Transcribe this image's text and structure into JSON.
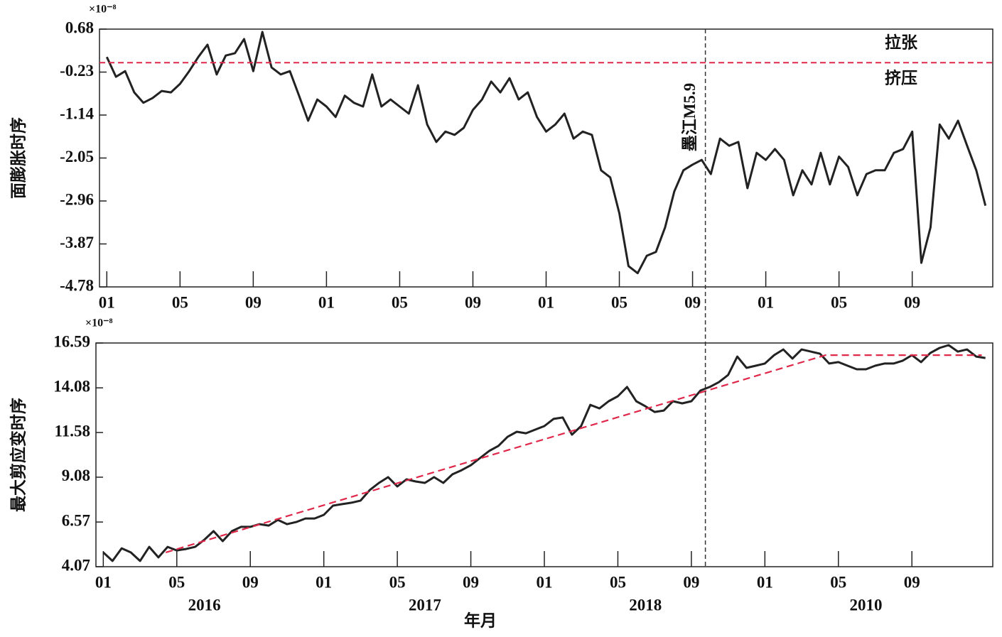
{
  "chart_data": [
    {
      "type": "line",
      "y_label": "面膨胀时序",
      "y_exponent": "×10⁻⁸",
      "xlim": [
        -0.4,
        48.4
      ],
      "xticks": [
        {
          "value": 0,
          "label": "01"
        },
        {
          "value": 4,
          "label": "05"
        },
        {
          "value": 8,
          "label": "09"
        },
        {
          "value": 12,
          "label": "01"
        },
        {
          "value": 16,
          "label": "05"
        },
        {
          "value": 20,
          "label": "09"
        },
        {
          "value": 24,
          "label": "01"
        },
        {
          "value": 28,
          "label": "05"
        },
        {
          "value": 32,
          "label": "09"
        },
        {
          "value": 36,
          "label": "01"
        },
        {
          "value": 40,
          "label": "05"
        },
        {
          "value": 44,
          "label": "09"
        }
      ],
      "ylim": [
        -4.78,
        0.68
      ],
      "yticks": [
        0.68,
        -0.23,
        -1.14,
        -2.05,
        -2.96,
        -3.87,
        -4.78
      ],
      "color": "#222222",
      "x": [
        0,
        0.5,
        1,
        1.5,
        2,
        2.5,
        3,
        3.5,
        4,
        4.5,
        5,
        5.5,
        6,
        6.5,
        7,
        7.5,
        8,
        8.5,
        9,
        9.5,
        10,
        10.5,
        11,
        11.5,
        12,
        12.5,
        13,
        13.5,
        14,
        14.5,
        15,
        15.5,
        16,
        16.5,
        17,
        17.5,
        18,
        18.5,
        19,
        19.5,
        20,
        20.5,
        21,
        21.5,
        22,
        22.5,
        23,
        23.5,
        24,
        24.5,
        25,
        25.5,
        26,
        26.5,
        27,
        27.5,
        28,
        28.5,
        29,
        29.5,
        30,
        30.5,
        31,
        31.5,
        32,
        32.5,
        33,
        33.5,
        34,
        34.5,
        35,
        35.5,
        36,
        36.5,
        37,
        37.5,
        38,
        38.5,
        39,
        39.5,
        40,
        40.5,
        41,
        41.5,
        42,
        42.5,
        43,
        43.5,
        44,
        44.5,
        45,
        45.5,
        46,
        46.5,
        47,
        47.5,
        48
      ],
      "values": [
        0.09,
        -0.33,
        -0.21,
        -0.66,
        -0.88,
        -0.78,
        -0.63,
        -0.66,
        -0.48,
        -0.21,
        0.09,
        0.35,
        -0.28,
        0.12,
        0.17,
        0.47,
        -0.21,
        0.62,
        -0.13,
        -0.28,
        -0.21,
        -0.73,
        -1.26,
        -0.81,
        -0.96,
        -1.18,
        -0.73,
        -0.88,
        -0.96,
        -0.28,
        -0.96,
        -0.81,
        -0.96,
        -1.11,
        -0.51,
        -1.34,
        -1.71,
        -1.49,
        -1.56,
        -1.41,
        -1.03,
        -0.81,
        -0.43,
        -0.66,
        -0.36,
        -0.81,
        -0.66,
        -1.18,
        -1.49,
        -1.34,
        -1.11,
        -1.64,
        -1.49,
        -1.56,
        -2.31,
        -2.46,
        -3.22,
        -4.34,
        -4.49,
        -4.12,
        -4.04,
        -3.52,
        -2.76,
        -2.31,
        -2.19,
        -2.09,
        -2.39,
        -1.64,
        -1.79,
        -1.71,
        -2.69,
        -1.94,
        -2.09,
        -1.86,
        -2.09,
        -2.84,
        -2.31,
        -2.61,
        -1.94,
        -2.61,
        -2.02,
        -2.24,
        -2.84,
        -2.39,
        -2.31,
        -2.31,
        -1.94,
        -1.86,
        -1.49,
        -4.27,
        -3.52,
        -1.34,
        -1.64,
        -1.26,
        -1.79,
        -2.31,
        -3.06
      ],
      "reference_line": {
        "value": -0.03,
        "color": "#e0284a",
        "above_label": "拉张",
        "below_label": "挤压"
      },
      "event": {
        "x": 32.7,
        "label": "墨江M5.9"
      }
    },
    {
      "type": "line",
      "y_label": "最大剪应变时序",
      "y_exponent": "×10⁻⁸",
      "x_label": "年月",
      "years": [
        "2016",
        "2017",
        "2018",
        "2010"
      ],
      "xlim": [
        -0.4,
        48.4
      ],
      "xticks": [
        {
          "value": 0,
          "label": "01"
        },
        {
          "value": 4,
          "label": "05"
        },
        {
          "value": 8,
          "label": "09"
        },
        {
          "value": 12,
          "label": "01"
        },
        {
          "value": 16,
          "label": "05"
        },
        {
          "value": 20,
          "label": "09"
        },
        {
          "value": 24,
          "label": "01"
        },
        {
          "value": 28,
          "label": "05"
        },
        {
          "value": 32,
          "label": "09"
        },
        {
          "value": 36,
          "label": "01"
        },
        {
          "value": 40,
          "label": "05"
        },
        {
          "value": 44,
          "label": "09"
        }
      ],
      "ylim": [
        4.07,
        16.59
      ],
      "yticks": [
        16.59,
        14.08,
        11.58,
        9.08,
        6.57,
        4.07
      ],
      "color": "#222222",
      "x": [
        0,
        0.5,
        1,
        1.5,
        2,
        2.5,
        3,
        3.5,
        4,
        4.5,
        5,
        5.5,
        6,
        6.5,
        7,
        7.5,
        8,
        8.5,
        9,
        9.5,
        10,
        10.5,
        11,
        11.5,
        12,
        12.5,
        13,
        13.5,
        14,
        14.5,
        15,
        15.5,
        16,
        16.5,
        17,
        17.5,
        18,
        18.5,
        19,
        19.5,
        20,
        20.5,
        21,
        21.5,
        22,
        22.5,
        23,
        23.5,
        24,
        24.5,
        25,
        25.5,
        26,
        26.5,
        27,
        27.5,
        28,
        28.5,
        29,
        29.5,
        30,
        30.5,
        31,
        31.5,
        32,
        32.5,
        33,
        33.5,
        34,
        34.5,
        35,
        35.5,
        36,
        36.5,
        37,
        37.5,
        38,
        38.5,
        39,
        39.5,
        40,
        40.5,
        41,
        41.5,
        42,
        42.5,
        43,
        43.5,
        44,
        44.5,
        45,
        45.5,
        46,
        46.5,
        47,
        47.5,
        48
      ],
      "values": [
        4.87,
        4.39,
        5.1,
        4.87,
        4.39,
        5.18,
        4.59,
        5.18,
        4.98,
        5.06,
        5.18,
        5.58,
        6.06,
        5.5,
        6.06,
        6.3,
        6.3,
        6.45,
        6.37,
        6.69,
        6.45,
        6.57,
        6.77,
        6.77,
        6.97,
        7.49,
        7.57,
        7.65,
        7.77,
        8.36,
        8.76,
        9.08,
        8.56,
        8.96,
        8.84,
        8.76,
        9.08,
        8.76,
        9.24,
        9.47,
        9.75,
        10.15,
        10.55,
        10.83,
        11.34,
        11.62,
        11.54,
        11.74,
        11.94,
        12.34,
        12.42,
        11.46,
        11.94,
        13.13,
        12.93,
        13.33,
        13.61,
        14.13,
        13.33,
        13.05,
        12.73,
        12.81,
        13.33,
        13.21,
        13.33,
        13.93,
        14.13,
        14.4,
        14.8,
        15.83,
        15.2,
        15.32,
        15.44,
        15.91,
        16.23,
        15.72,
        16.23,
        16.11,
        15.99,
        15.44,
        15.52,
        15.32,
        15.12,
        15.12,
        15.32,
        15.44,
        15.44,
        15.6,
        15.91,
        15.52,
        16.03,
        16.31,
        16.47,
        16.11,
        16.23,
        15.83,
        15.75
      ],
      "trend": {
        "x": [
          3.4,
          39.3,
          47.8
        ],
        "values": [
          4.87,
          15.91,
          15.91
        ],
        "color": "#e0284a"
      }
    }
  ]
}
